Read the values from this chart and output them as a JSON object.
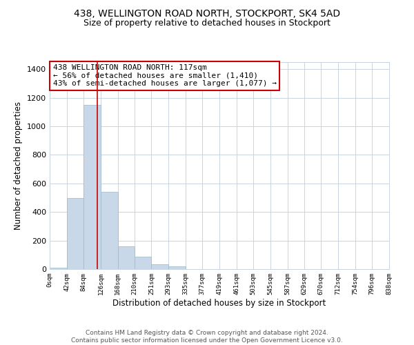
{
  "title": "438, WELLINGTON ROAD NORTH, STOCKPORT, SK4 5AD",
  "subtitle": "Size of property relative to detached houses in Stockport",
  "xlabel": "Distribution of detached houses by size in Stockport",
  "ylabel": "Number of detached properties",
  "bar_color": "#c8d8e8",
  "bar_edge_color": "#9ab8cc",
  "vline_color": "#cc0000",
  "vline_x": 117,
  "annotation_line1": "438 WELLINGTON ROAD NORTH: 117sqm",
  "annotation_line2": "← 56% of detached houses are smaller (1,410)",
  "annotation_line3": "43% of semi-detached houses are larger (1,077) →",
  "bin_edges": [
    0,
    42,
    84,
    126,
    168,
    210,
    251,
    293,
    335,
    377,
    419,
    461,
    503,
    545,
    587,
    629,
    670,
    712,
    754,
    796,
    838
  ],
  "bin_heights": [
    10,
    500,
    1150,
    540,
    160,
    85,
    35,
    20,
    0,
    0,
    0,
    0,
    0,
    0,
    0,
    0,
    0,
    0,
    0,
    0
  ],
  "ylim": [
    0,
    1450
  ],
  "yticks": [
    0,
    200,
    400,
    600,
    800,
    1000,
    1200,
    1400
  ],
  "tick_labels": [
    "0sqm",
    "42sqm",
    "84sqm",
    "126sqm",
    "168sqm",
    "210sqm",
    "251sqm",
    "293sqm",
    "335sqm",
    "377sqm",
    "419sqm",
    "461sqm",
    "503sqm",
    "545sqm",
    "587sqm",
    "629sqm",
    "670sqm",
    "712sqm",
    "754sqm",
    "796sqm",
    "838sqm"
  ],
  "footer_line1": "Contains HM Land Registry data © Crown copyright and database right 2024.",
  "footer_line2": "Contains public sector information licensed under the Open Government Licence v3.0.",
  "background_color": "#ffffff",
  "grid_color": "#c8d4e0",
  "title_fontsize": 10,
  "subtitle_fontsize": 9,
  "xlabel_fontsize": 8.5,
  "ylabel_fontsize": 8.5,
  "annotation_fontsize": 8,
  "footer_fontsize": 6.5
}
